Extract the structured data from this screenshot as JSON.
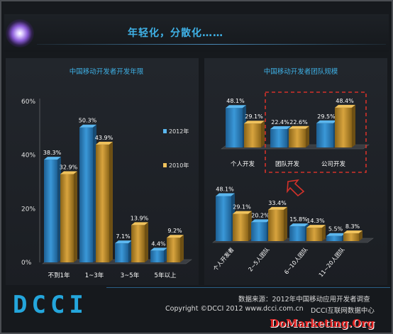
{
  "page_title": "年轻化，分散化……",
  "footer": {
    "logo": "DCCI",
    "source": "数据来源：2012年中国移动应用开发者调查",
    "copyright": "Copyright ©DCCI 2012 www.dcci.com.cn",
    "center": "DCCI互联网数据中心",
    "watermark": "DoMarketing.Org"
  },
  "colors": {
    "series_2012": "#2f86c6",
    "series_2010": "#c4922e",
    "highlight": "#d4322a",
    "title": "#3fb1e6"
  },
  "chart_data": [
    {
      "type": "bar",
      "title": "中国移动开发者开发年限",
      "categories": [
        "不到1年",
        "1~3年",
        "3~5年",
        "5年以上"
      ],
      "series": [
        {
          "name": "2012年",
          "values": [
            38.3,
            50.3,
            7.1,
            4.4
          ]
        },
        {
          "name": "2010年",
          "values": [
            32.9,
            43.9,
            13.9,
            9.2
          ]
        }
      ],
      "value_labels": [
        [
          "38.3%",
          "50.3%",
          "7.1%",
          "4.4%"
        ],
        [
          "32.9%",
          "43.9%",
          "13.9%",
          "9.2%"
        ]
      ],
      "ylim": [
        0,
        60
      ],
      "yticks": [
        "0%",
        "20%",
        "40%",
        "60%"
      ],
      "legend": [
        "2012年",
        "2010年"
      ],
      "legend_position": "right",
      "grid": false
    },
    {
      "type": "bar",
      "title": "中国移动开发者团队规模",
      "categories": [
        "个人开发",
        "团队开发",
        "公司开发"
      ],
      "series": [
        {
          "name": "2012年",
          "values": [
            48.1,
            22.4,
            29.5
          ]
        },
        {
          "name": "2010年",
          "values": [
            29.1,
            22.6,
            48.4
          ]
        }
      ],
      "value_labels": [
        [
          "48.1%",
          "22.4%",
          "29.5%"
        ],
        [
          "29.1%",
          "22.6%",
          "48.4%"
        ]
      ],
      "highlight": [
        "团队开发",
        "公司开发"
      ]
    },
    {
      "type": "bar",
      "categories": [
        "个人开发者",
        "2~5人团队",
        "6~10人团队",
        "11~20人团队"
      ],
      "series": [
        {
          "name": "2012年",
          "values": [
            48.1,
            20.2,
            15.8,
            5.5
          ]
        },
        {
          "name": "2010年",
          "values": [
            29.1,
            33.4,
            14.3,
            8.3
          ]
        }
      ],
      "value_labels": [
        [
          "48.1%",
          "20.2%",
          "15.8%",
          "5.5%"
        ],
        [
          "29.1%",
          "33.4%",
          "14.3%",
          "8.3%"
        ]
      ],
      "annotation_arrow_target": "2~5人团队"
    }
  ]
}
